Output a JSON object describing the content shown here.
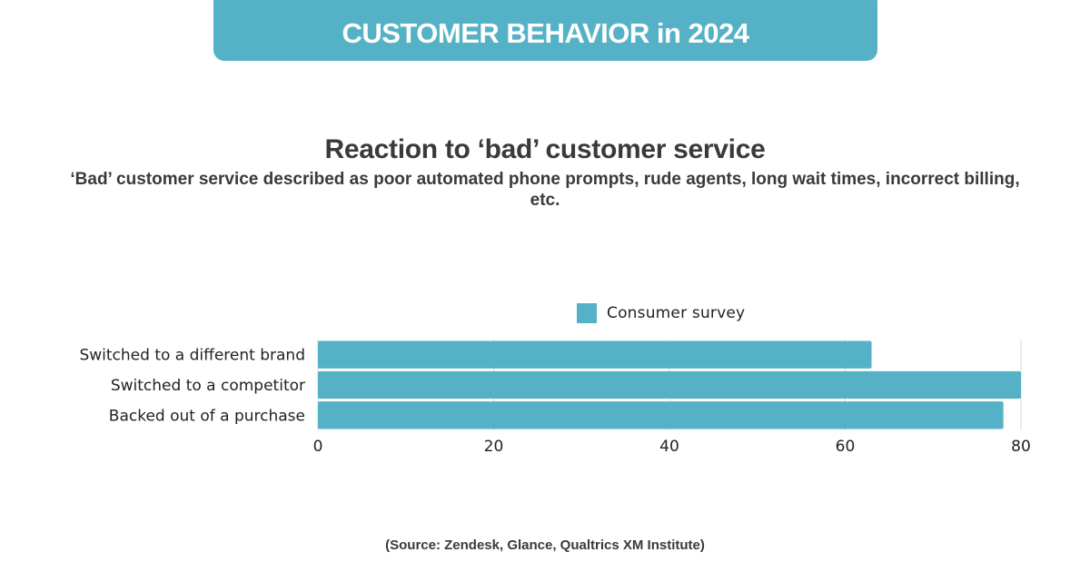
{
  "banner": {
    "title": "CUSTOMER BEHAVIOR in 2024"
  },
  "colors": {
    "accent": "#55b2c6",
    "grid": "#d9d9d9",
    "text": "#333333"
  },
  "source": "(Source: Zendesk, Glance, Qualtrics XM Institute)",
  "chart_data": {
    "type": "bar",
    "orientation": "horizontal",
    "title": "Reaction to ‘bad’ customer service",
    "subtitle": "‘Bad’ customer service described as poor automated phone prompts, rude agents, long wait times, incorrect billing, etc.",
    "categories": [
      "Switched to a different brand",
      "Switched to a competitor",
      "Backed out of a purchase"
    ],
    "series": [
      {
        "name": "Consumer survey",
        "values": [
          63,
          80,
          78
        ],
        "color": "#55b2c6"
      }
    ],
    "xlabel": "",
    "ylabel": "",
    "xlim": [
      0,
      80
    ],
    "xticks": [
      0,
      20,
      40,
      60,
      80
    ],
    "grid": true,
    "legend": "top-center"
  }
}
